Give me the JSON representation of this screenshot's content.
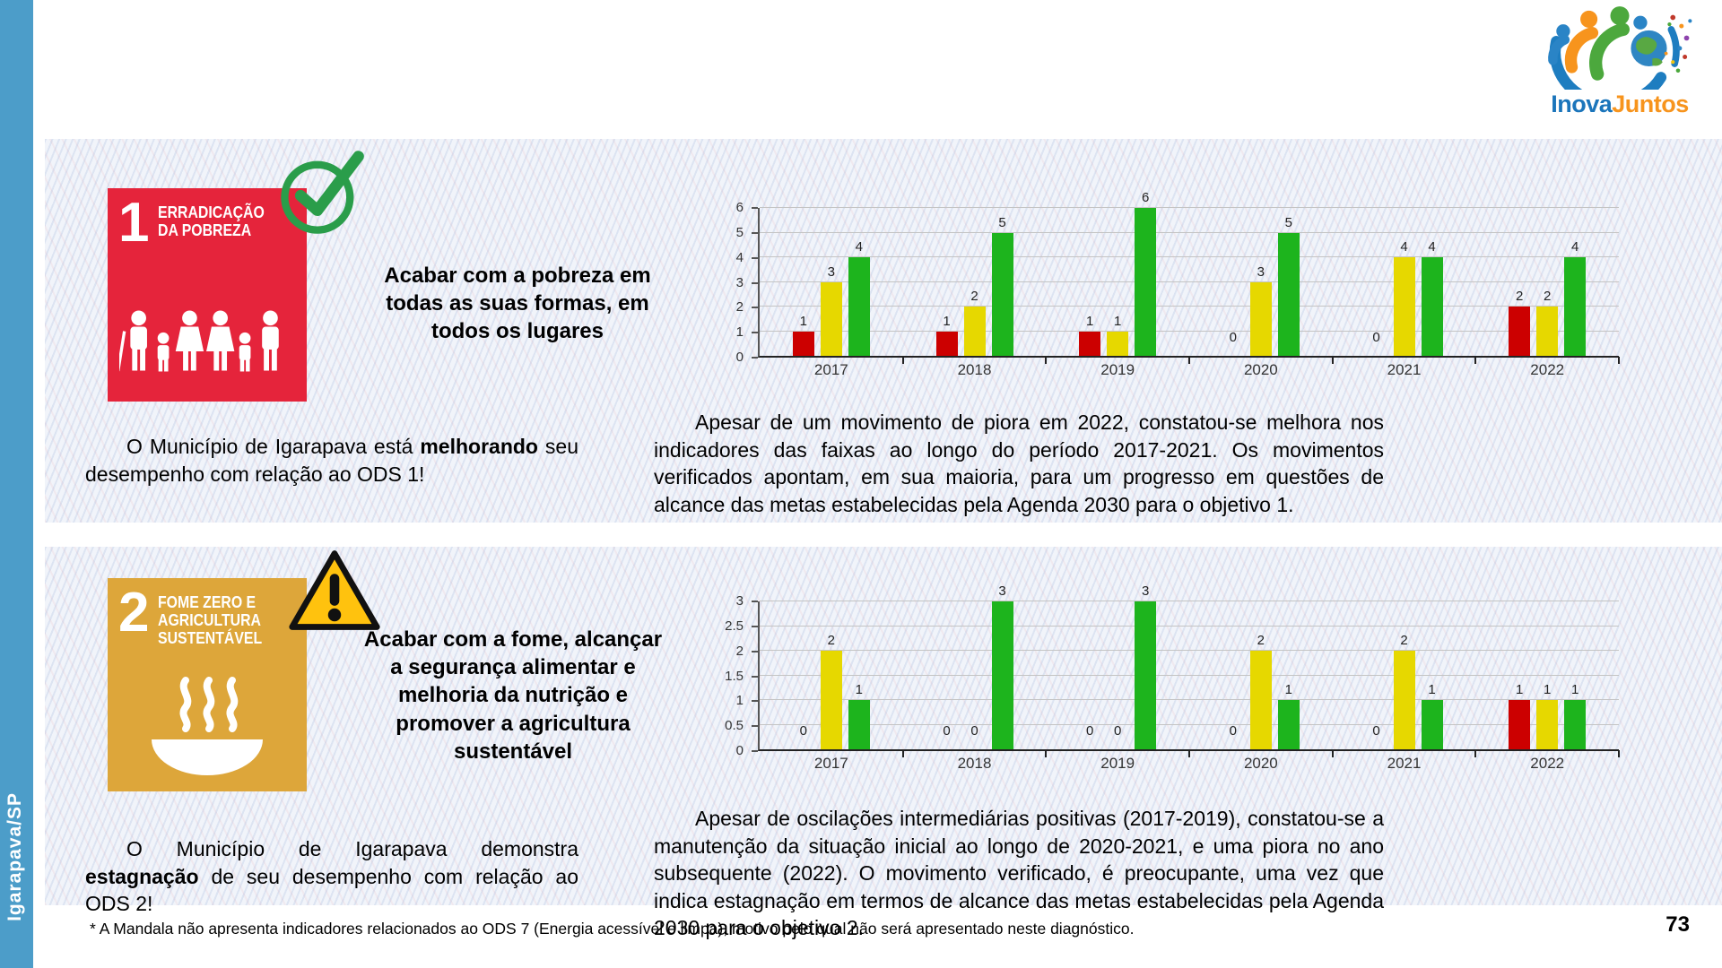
{
  "sidebar": {
    "label": "Igarapava/SP"
  },
  "logo": {
    "inova": "Inova",
    "juntos": "Juntos"
  },
  "page": {
    "number": "73"
  },
  "footnote": "* A Mandala não apresenta indicadores relacionados ao ODS 7 (Energia acessível e limpa), motivo pelo qual não será apresentado neste diagnóstico.",
  "sections": [
    {
      "number": "1",
      "title": "ERRADICAÇÃO\nDA POBREZA",
      "status_icon": "check",
      "goal": "Acabar com a pobreza em todas as suas formas, em todos os lugares",
      "left_pre": "O Município de Igarapava está ",
      "left_bold": "melhorando",
      "left_post": " seu desempenho com relação ao ODS 1!",
      "right": "Apesar de um movimento de piora em 2022, constatou-se melhora nos indicadores das faixas ao longo do período 2017-2021. Os movimentos verificados apontam, em sua maioria, para um progresso em questões de alcance das metas estabelecidas pela Agenda 2030 para o objetivo 1."
    },
    {
      "number": "2",
      "title": "FOME ZERO E\nAGRICULTURA\nSUSTENTÁVEL",
      "status_icon": "warning",
      "goal": "Acabar com a fome, alcançar a segurança alimentar e melhoria da nutrição e promover a agricultura sustentável",
      "left_pre": "O Município de Igarapava demonstra ",
      "left_bold": "estagnação",
      "left_post": " de seu desempenho com relação ao ODS 2!",
      "right": "Apesar de oscilações intermediárias positivas (2017-2019), constatou-se a manutenção da situação inicial ao longo de 2020-2021, e uma piora no ano subsequente (2022). O movimento verificado, é preocupante, uma vez que indica estagnação em termos de alcance das metas estabelecidas pela Agenda 2030 para o objetivo 2."
    }
  ],
  "chart_data": [
    {
      "type": "bar",
      "title": "",
      "categories": [
        "2017",
        "2018",
        "2019",
        "2020",
        "2021",
        "2022"
      ],
      "series": [
        {
          "name": "red",
          "color": "#cc0000",
          "values": [
            1,
            1,
            1,
            0,
            0,
            2
          ]
        },
        {
          "name": "yellow",
          "color": "#e6d800",
          "values": [
            3,
            2,
            1,
            3,
            4,
            2
          ]
        },
        {
          "name": "green",
          "color": "#1db41d",
          "values": [
            4,
            5,
            6,
            5,
            4,
            4
          ]
        }
      ],
      "xlabel": "",
      "ylabel": "",
      "ylim": [
        0,
        6
      ],
      "yticks": [
        0,
        1,
        2,
        3,
        4,
        5,
        6
      ],
      "grid": true,
      "legend": "none"
    },
    {
      "type": "bar",
      "title": "",
      "categories": [
        "2017",
        "2018",
        "2019",
        "2020",
        "2021",
        "2022"
      ],
      "series": [
        {
          "name": "red",
          "color": "#cc0000",
          "values": [
            0,
            0,
            0,
            0,
            0,
            1
          ]
        },
        {
          "name": "yellow",
          "color": "#e6d800",
          "values": [
            2,
            0,
            0,
            2,
            2,
            1
          ]
        },
        {
          "name": "green",
          "color": "#1db41d",
          "values": [
            1,
            3,
            3,
            1,
            1,
            1
          ]
        }
      ],
      "xlabel": "",
      "ylabel": "",
      "ylim": [
        0,
        3
      ],
      "yticks": [
        0,
        0.5,
        1,
        1.5,
        2,
        2.5,
        3
      ],
      "grid": true,
      "legend": "none"
    }
  ],
  "status_colors": {
    "bad": "#cc0000",
    "medium": "#e6d800",
    "good": "#1db41d"
  },
  "brand_colors": {
    "ods1": "#e5243b",
    "ods2": "#dda63a",
    "sidebar": "#4c9dc9",
    "logo_blue": "#1b75bb",
    "logo_orange": "#f7941d"
  }
}
